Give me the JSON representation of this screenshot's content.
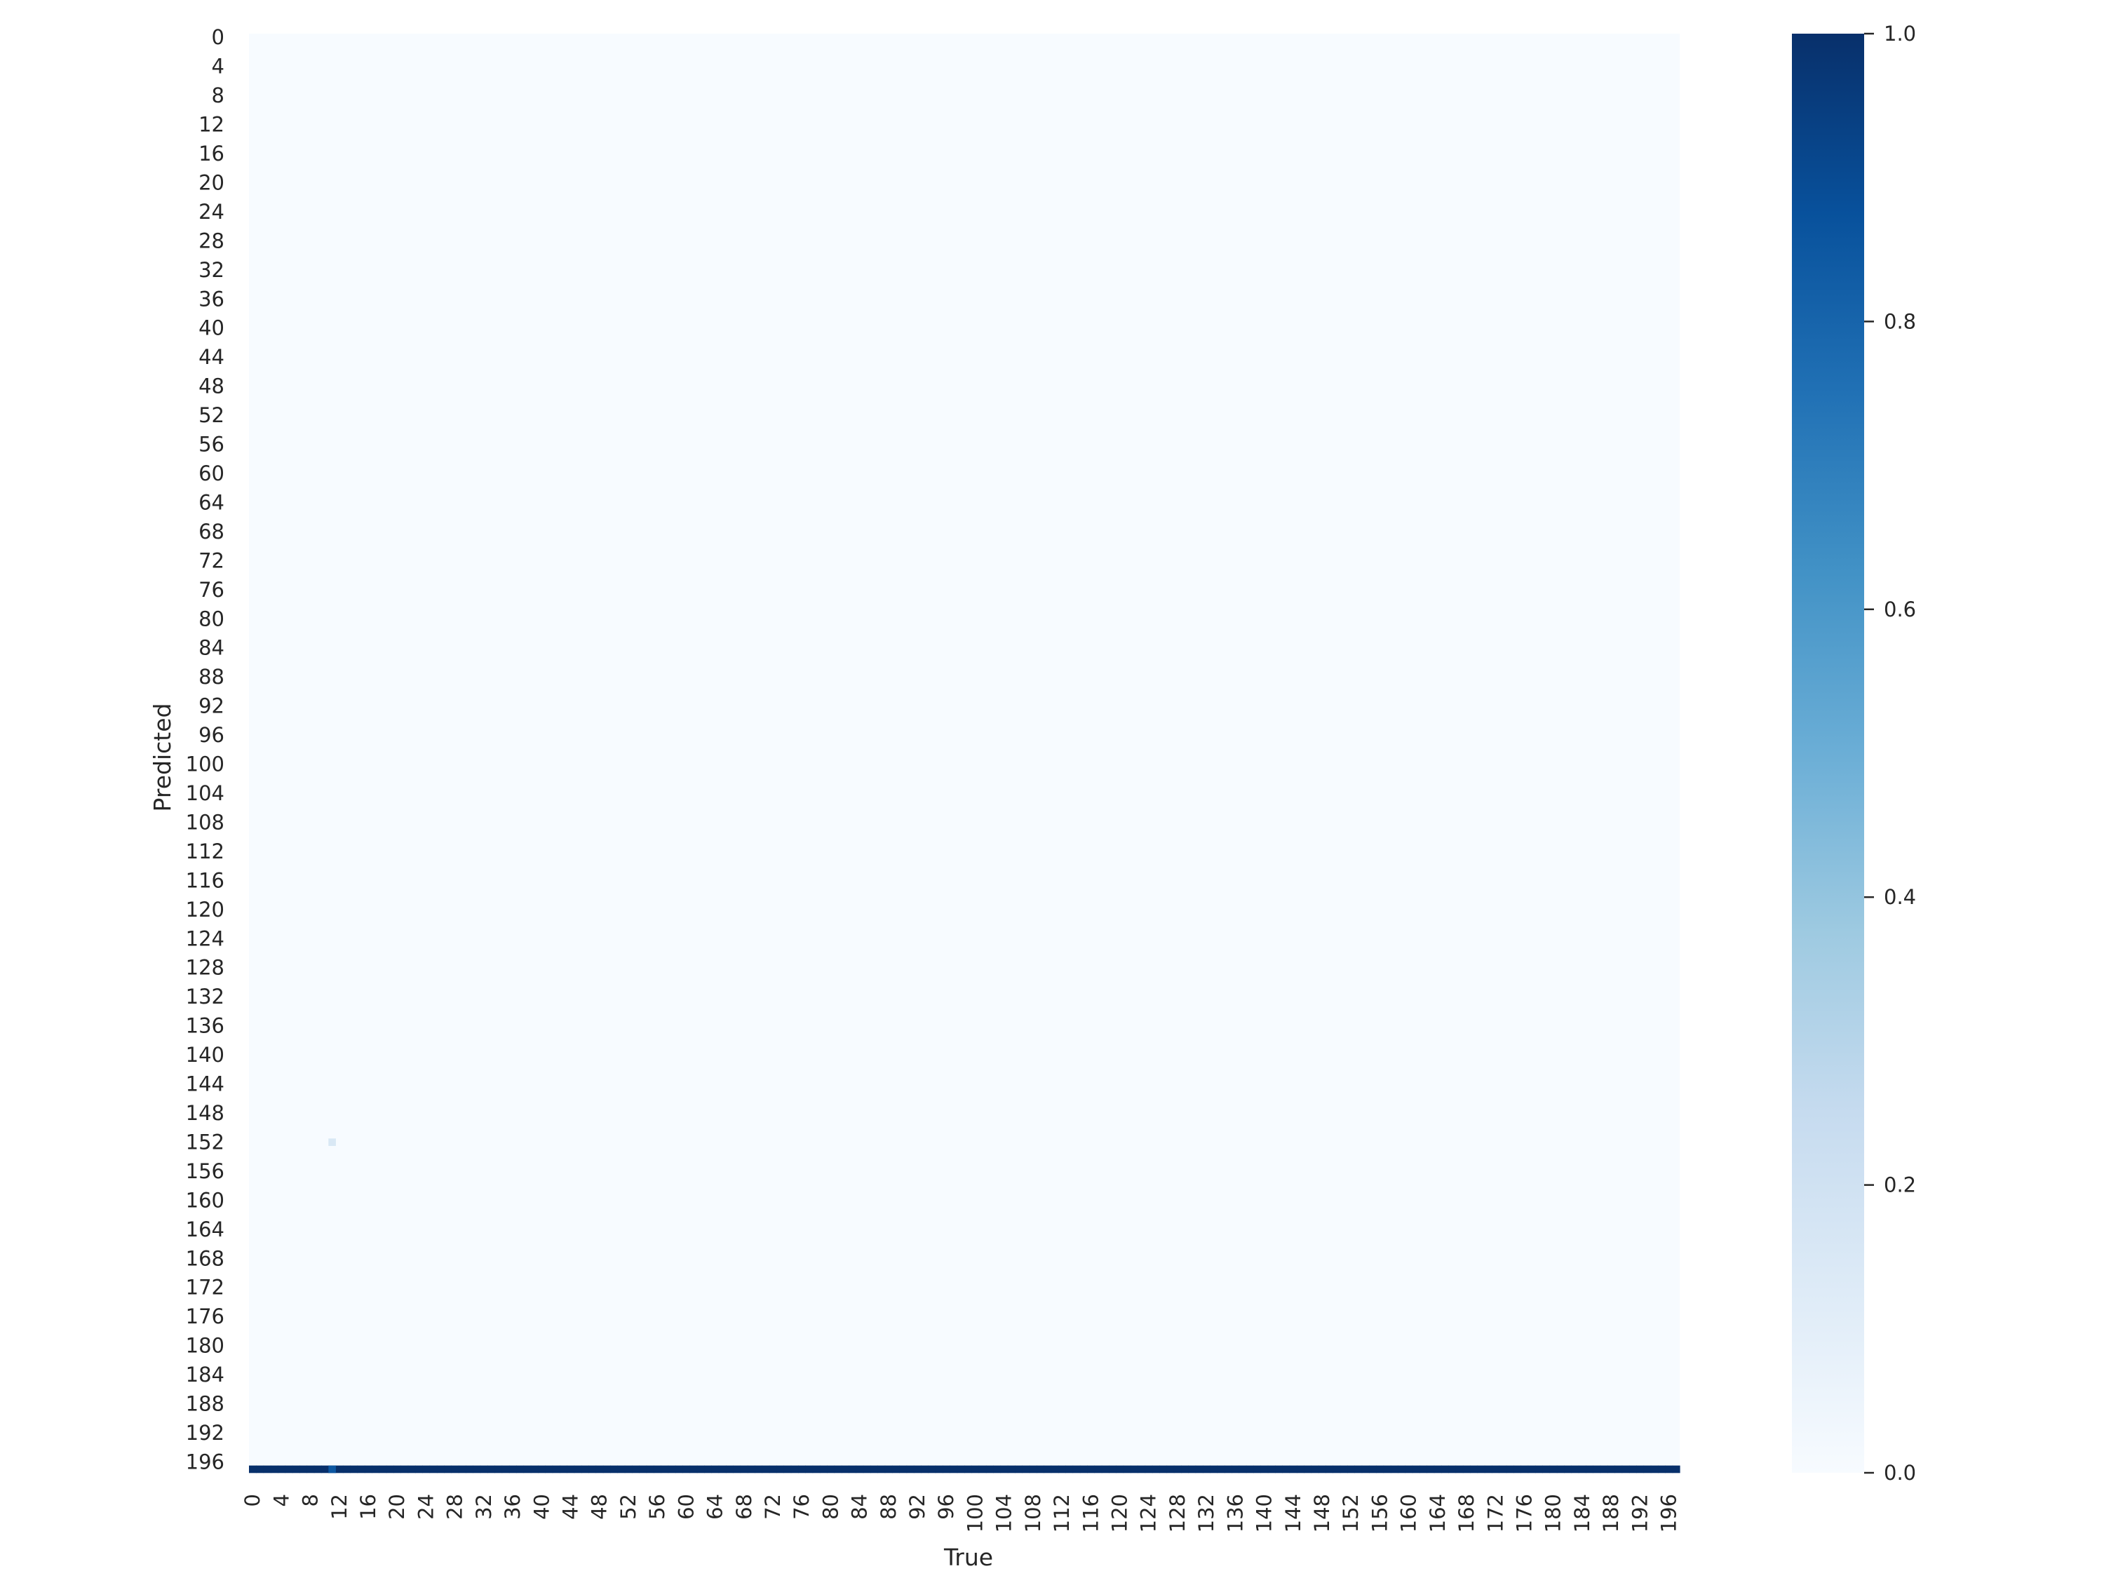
{
  "chart_data": {
    "type": "heatmap",
    "title": "",
    "xlabel": "True",
    "ylabel": "Predicted",
    "n_classes": 198,
    "x_ticks": [
      0,
      4,
      8,
      12,
      16,
      20,
      24,
      28,
      32,
      36,
      40,
      44,
      48,
      52,
      56,
      60,
      64,
      68,
      72,
      76,
      80,
      84,
      88,
      92,
      96,
      100,
      104,
      108,
      112,
      116,
      120,
      124,
      128,
      132,
      136,
      140,
      144,
      148,
      152,
      156,
      160,
      164,
      168,
      172,
      176,
      180,
      184,
      188,
      192,
      196
    ],
    "y_ticks": [
      0,
      4,
      8,
      12,
      16,
      20,
      24,
      28,
      32,
      36,
      40,
      44,
      48,
      52,
      56,
      60,
      64,
      68,
      72,
      76,
      80,
      84,
      88,
      92,
      96,
      100,
      104,
      108,
      112,
      116,
      120,
      124,
      128,
      132,
      136,
      140,
      144,
      148,
      152,
      156,
      160,
      164,
      168,
      172,
      176,
      180,
      184,
      188,
      192,
      196
    ],
    "colorbar": {
      "colormap": "Blues",
      "range": [
        0.0,
        1.0
      ],
      "tick_values": [
        0.0,
        0.2,
        0.4,
        0.6,
        0.8,
        1.0
      ],
      "tick_labels": [
        "0.0",
        "0.2",
        "0.4",
        "0.6",
        "0.8",
        "1.0"
      ]
    },
    "background_value": 0.0,
    "row_fill": {
      "predicted": 197,
      "true_from": 0,
      "true_to": 197,
      "value": 1.0
    },
    "cells": [
      {
        "predicted": 152,
        "true": 11,
        "value": 0.15
      },
      {
        "predicted": 197,
        "true": 11,
        "value": 0.85
      }
    ]
  }
}
